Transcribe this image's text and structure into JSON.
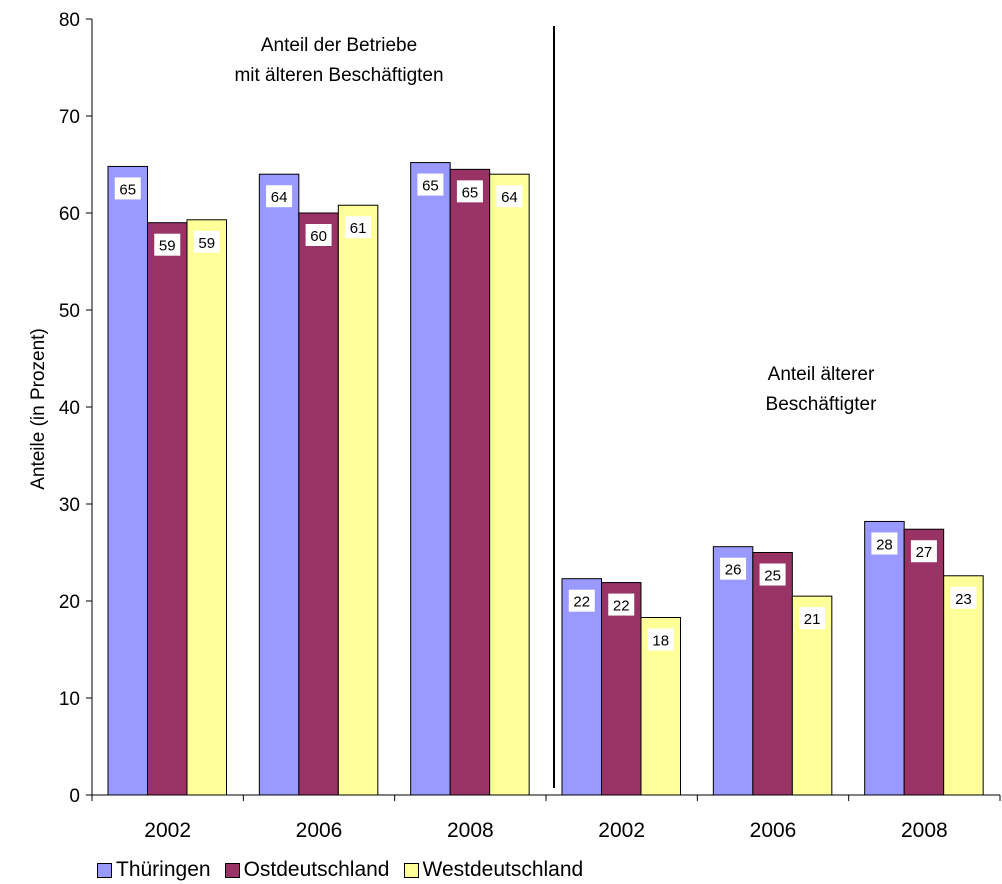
{
  "chart_data": {
    "type": "bar",
    "categories": [
      "2002",
      "2006",
      "2008",
      "2002",
      "2006",
      "2008"
    ],
    "series": [
      {
        "name": "Thüringen",
        "color": "#9999ff",
        "values": [
          64.8,
          64.0,
          65.2,
          22.3,
          25.6,
          28.2
        ],
        "labels": [
          "65",
          "64",
          "65",
          "22",
          "26",
          "28"
        ]
      },
      {
        "name": "Ostdeutschland",
        "color": "#993366",
        "values": [
          59.0,
          60.0,
          64.5,
          21.9,
          25.0,
          27.4
        ],
        "labels": [
          "59",
          "60",
          "65",
          "22",
          "25",
          "27"
        ]
      },
      {
        "name": "Westdeutschland",
        "color": "#ffff99",
        "values": [
          59.3,
          60.8,
          64.0,
          18.3,
          20.5,
          22.6
        ],
        "labels": [
          "59",
          "61",
          "64",
          "18",
          "21",
          "23"
        ]
      }
    ],
    "ylabel": "Anteile (in Prozent)",
    "ylim": [
      0,
      80
    ],
    "yticks": [
      0,
      10,
      20,
      30,
      40,
      50,
      60,
      70,
      80
    ],
    "annotations": [
      {
        "lines": [
          "Anteil der Betriebe",
          "mit älteren Beschäftigten"
        ]
      },
      {
        "lines": [
          "Anteil älterer",
          "Beschäftigter"
        ]
      }
    ],
    "grid": false,
    "legend_position": "bottom-left"
  }
}
